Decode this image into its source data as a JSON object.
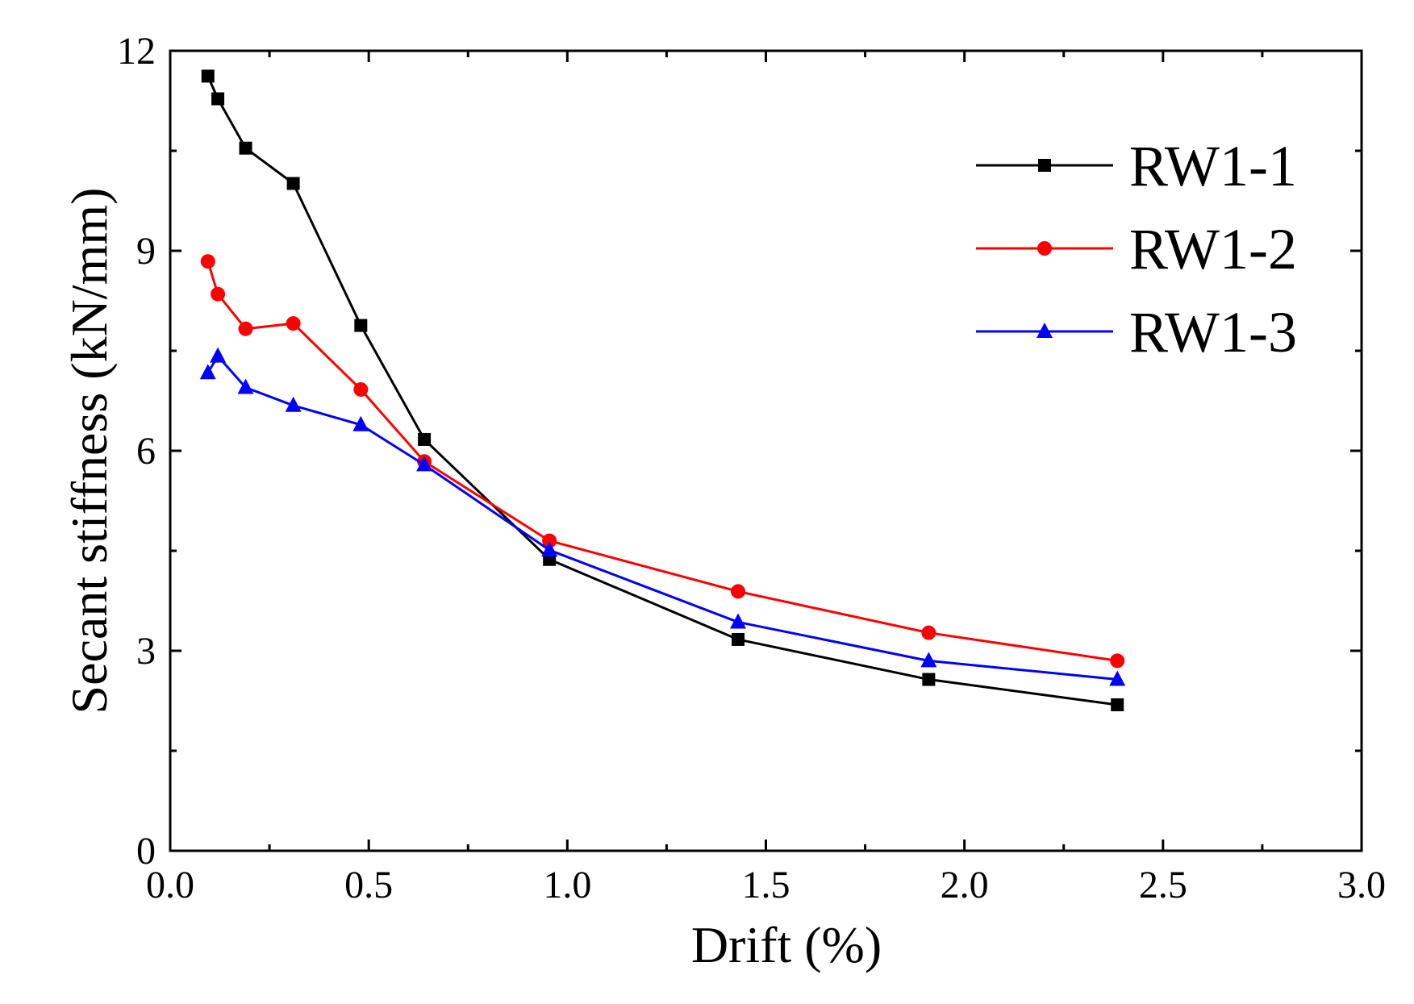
{
  "chart_data": {
    "type": "line",
    "title": "",
    "xlabel": "Drift (%)",
    "ylabel": "Secant stiffness (kN/mm)",
    "xlim": [
      0.0,
      3.0
    ],
    "ylim": [
      0,
      12
    ],
    "xticks": [
      0.0,
      0.5,
      1.0,
      1.5,
      2.0,
      2.5,
      3.0
    ],
    "xtick_labels": [
      "0.0",
      "0.5",
      "1.0",
      "1.5",
      "2.0",
      "2.5",
      "3.0"
    ],
    "yticks": [
      0,
      3,
      6,
      9,
      12
    ],
    "ytick_labels": [
      "0",
      "3",
      "6",
      "9",
      "12"
    ],
    "grid": false,
    "legend_position": "top-right",
    "series": [
      {
        "name": "RW1-1",
        "color": "#000000",
        "marker": "square",
        "x": [
          0.095,
          0.12,
          0.19,
          0.31,
          0.48,
          0.64,
          0.955,
          1.43,
          1.91,
          2.385
        ],
        "y": [
          11.62,
          11.28,
          10.54,
          10.01,
          7.88,
          6.17,
          4.37,
          3.17,
          2.57,
          2.19
        ]
      },
      {
        "name": "RW1-2",
        "color": "#ff0000",
        "marker": "circle",
        "x": [
          0.095,
          0.12,
          0.19,
          0.31,
          0.48,
          0.64,
          0.955,
          1.43,
          1.91,
          2.385
        ],
        "y": [
          8.84,
          8.35,
          7.83,
          7.91,
          6.92,
          5.84,
          4.65,
          3.89,
          3.27,
          2.85
        ]
      },
      {
        "name": "RW1-3",
        "color": "#0000ff",
        "marker": "triangle",
        "x": [
          0.095,
          0.12,
          0.19,
          0.31,
          0.48,
          0.64,
          0.955,
          1.43,
          1.91,
          2.385
        ],
        "y": [
          7.17,
          7.42,
          6.95,
          6.68,
          6.39,
          5.79,
          4.51,
          3.43,
          2.85,
          2.57
        ]
      }
    ]
  }
}
